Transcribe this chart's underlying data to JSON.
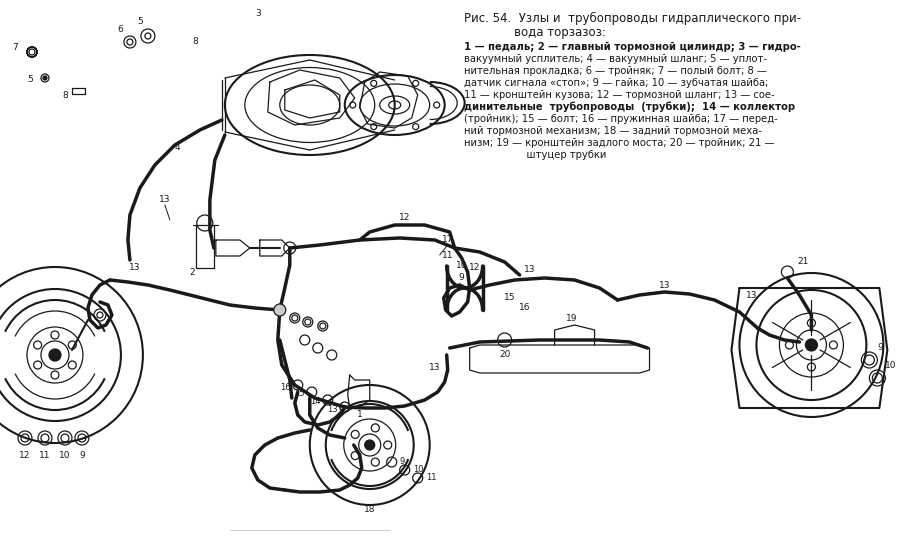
{
  "bg_color": "#ffffff",
  "text_color": "#1a1a1a",
  "line_color": "#1a1a1a",
  "figsize": [
    9.0,
    5.41
  ],
  "dpi": 100,
  "title1": "Рис. 54.  Узлы и  трубопроводы гидраплического при-",
  "title2": "вода торзазоз:",
  "desc_lines": [
    "1 — педаль; 2 — главный тормозной цилиндр; 3 — гидро-",
    "вакуумный усплитель; 4 — вакуумный шланг; 5 — уплот-",
    "нительная прокладка; 6 — тройняк; 7 — полый болт; 8 —",
    "датчик сигнала «стоп»; 9 — гайка; 10 — зубчатая шайба;",
    "11 — кронштейн кузова; 12 — тормозной шланг; 13 — сое-",
    "динительные  трубопроводы  (трубки);  14 — коллектор",
    "(тройник); 15 — болт; 16 — пружинная шайба; 17 — перед-",
    "ний тормозной механизм; 18 — задний тормозной меха-",
    "низм; 19 — кронштейн задлого моста; 20 — тройник; 21 —",
    "                    штуцер трубки"
  ],
  "bold_words": [
    "главный",
    "трубопроводы"
  ]
}
